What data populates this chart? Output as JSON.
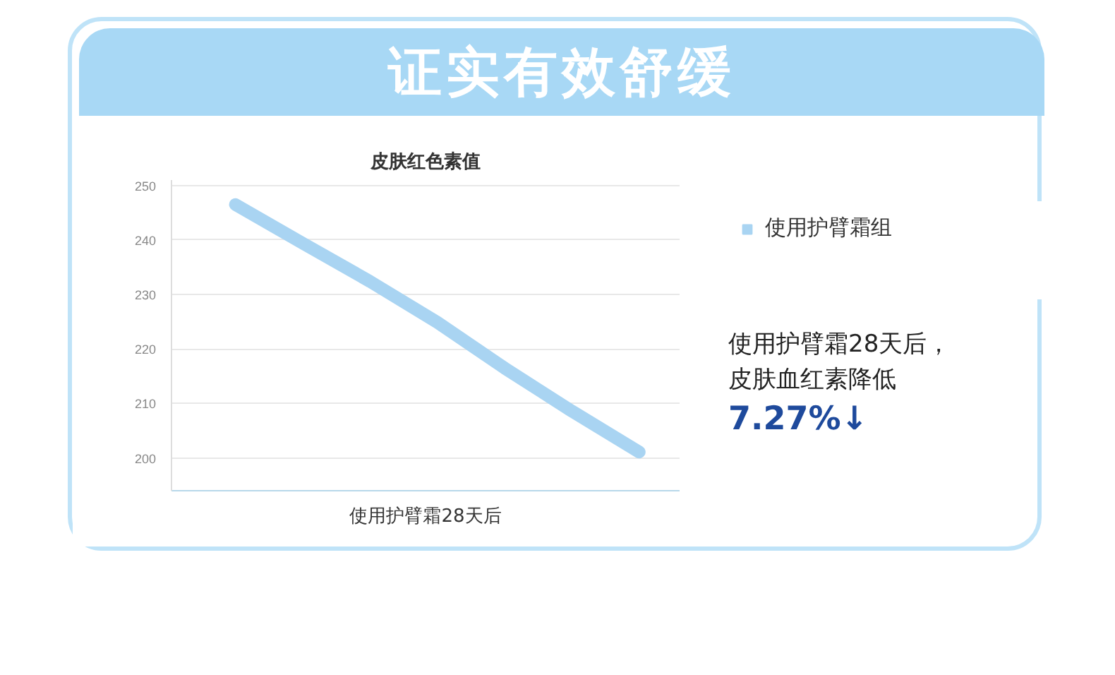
{
  "chart_data": {
    "type": "line",
    "title": "证实有效舒缓",
    "subtitle": "皮肤红色素值",
    "xlabel": "使用护臂霜28天后",
    "categories": [
      null,
      null,
      null,
      null,
      null,
      null,
      null
    ],
    "series": [
      {
        "name": "使用护臂霜组",
        "color": "#a9d4f2",
        "values": [
          246.5,
          239.4,
          232.4,
          224.9,
          216.5,
          208.6,
          201.1
        ]
      }
    ],
    "ylim": [
      194,
      251
    ],
    "yticks": [
      200,
      210,
      220,
      230,
      240,
      250
    ],
    "grid": "y",
    "legend": "right",
    "tick_labels": "y",
    "annotations": [
      "使用护臂霜28天后，",
      "皮肤血红素降低",
      "7.27%↓"
    ]
  }
}
